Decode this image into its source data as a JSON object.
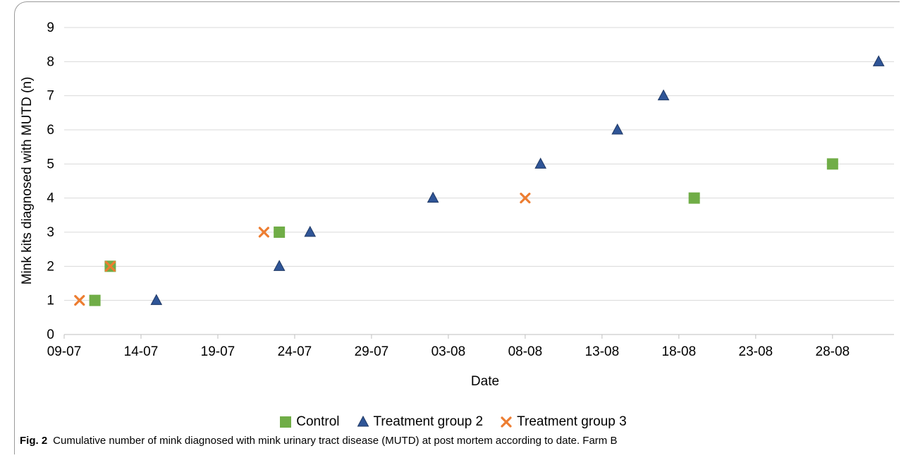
{
  "chart_data": {
    "type": "scatter",
    "xlabel": "Date",
    "ylabel": "Mink kits diagnosed with MUTD (n)",
    "xlim": [
      "09-07",
      "01-09"
    ],
    "ylim": [
      0,
      9
    ],
    "x_ticks": [
      "09-07",
      "14-07",
      "19-07",
      "24-07",
      "29-07",
      "03-08",
      "08-08",
      "13-08",
      "18-08",
      "23-08",
      "28-08"
    ],
    "y_ticks": [
      0,
      1,
      2,
      3,
      4,
      5,
      6,
      7,
      8,
      9
    ],
    "grid": "horizontal",
    "legend_position": "bottom",
    "series": [
      {
        "name": "Control",
        "marker": "square",
        "color": "#70ad47",
        "points": [
          {
            "x": "11-07",
            "y": 1
          },
          {
            "x": "12-07",
            "y": 2
          },
          {
            "x": "23-07",
            "y": 3
          },
          {
            "x": "19-08",
            "y": 4
          },
          {
            "x": "28-08",
            "y": 5
          }
        ]
      },
      {
        "name": "Treatment group 2",
        "marker": "triangle",
        "color": "#2f5597",
        "points": [
          {
            "x": "15-07",
            "y": 1
          },
          {
            "x": "23-07",
            "y": 2
          },
          {
            "x": "25-07",
            "y": 3
          },
          {
            "x": "02-08",
            "y": 4
          },
          {
            "x": "09-08",
            "y": 5
          },
          {
            "x": "14-08",
            "y": 6
          },
          {
            "x": "17-08",
            "y": 7
          },
          {
            "x": "31-08",
            "y": 8
          }
        ]
      },
      {
        "name": "Treatment group 3",
        "marker": "cross",
        "color": "#ed7d31",
        "points": [
          {
            "x": "10-07",
            "y": 1
          },
          {
            "x": "12-07",
            "y": 2
          },
          {
            "x": "22-07",
            "y": 3
          },
          {
            "x": "08-08",
            "y": 4
          }
        ]
      }
    ]
  },
  "caption": {
    "label": "Fig. 2",
    "text": "Cumulative number of mink diagnosed with mink urinary tract disease (MUTD) at post mortem according to date. Farm B"
  }
}
